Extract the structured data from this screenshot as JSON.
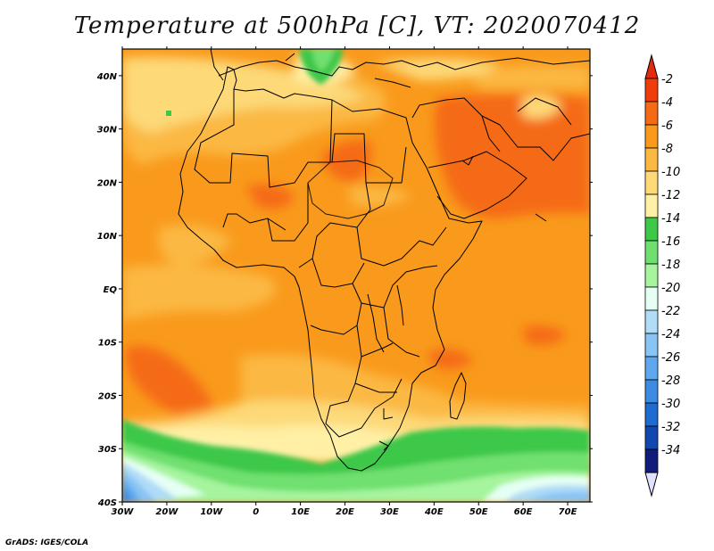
{
  "title": "Temperature at 500hPa [C], VT: 2020070412",
  "credit": "GrADS: IGES/COLA",
  "map": {
    "variable": "Temperature at 500hPa",
    "units": "C",
    "valid_time": "2020070412",
    "lon_range": [
      -30,
      75
    ],
    "lat_range": [
      -40,
      45
    ],
    "lon_ticks": [
      "30W",
      "20W",
      "10W",
      "0",
      "10E",
      "20E",
      "30E",
      "40E",
      "50E",
      "60E",
      "70E"
    ],
    "lat_ticks": [
      "40N",
      "30N",
      "20N",
      "10N",
      "EQ",
      "10S",
      "20S",
      "30S",
      "40S"
    ]
  },
  "colorbar": {
    "labels": [
      "-2",
      "-4",
      "-6",
      "-8",
      "-10",
      "-12",
      "-14",
      "-16",
      "-18",
      "-20",
      "-22",
      "-24",
      "-26",
      "-28",
      "-30",
      "-32",
      "-34"
    ],
    "colors": [
      "#f03c0a",
      "#f56a14",
      "#f99a1c",
      "#fbb843",
      "#fdd978",
      "#fff0a6",
      "#3ec848",
      "#6fe070",
      "#a6f49e",
      "#e6fff4",
      "#b0dcf8",
      "#88c4f4",
      "#5fa8ee",
      "#3c8ce4",
      "#1e6cd2",
      "#1048b0",
      "#101c7c"
    ],
    "top_triangle_color": "#e02c0c",
    "bottom_triangle_color": "#e0e0ff"
  }
}
